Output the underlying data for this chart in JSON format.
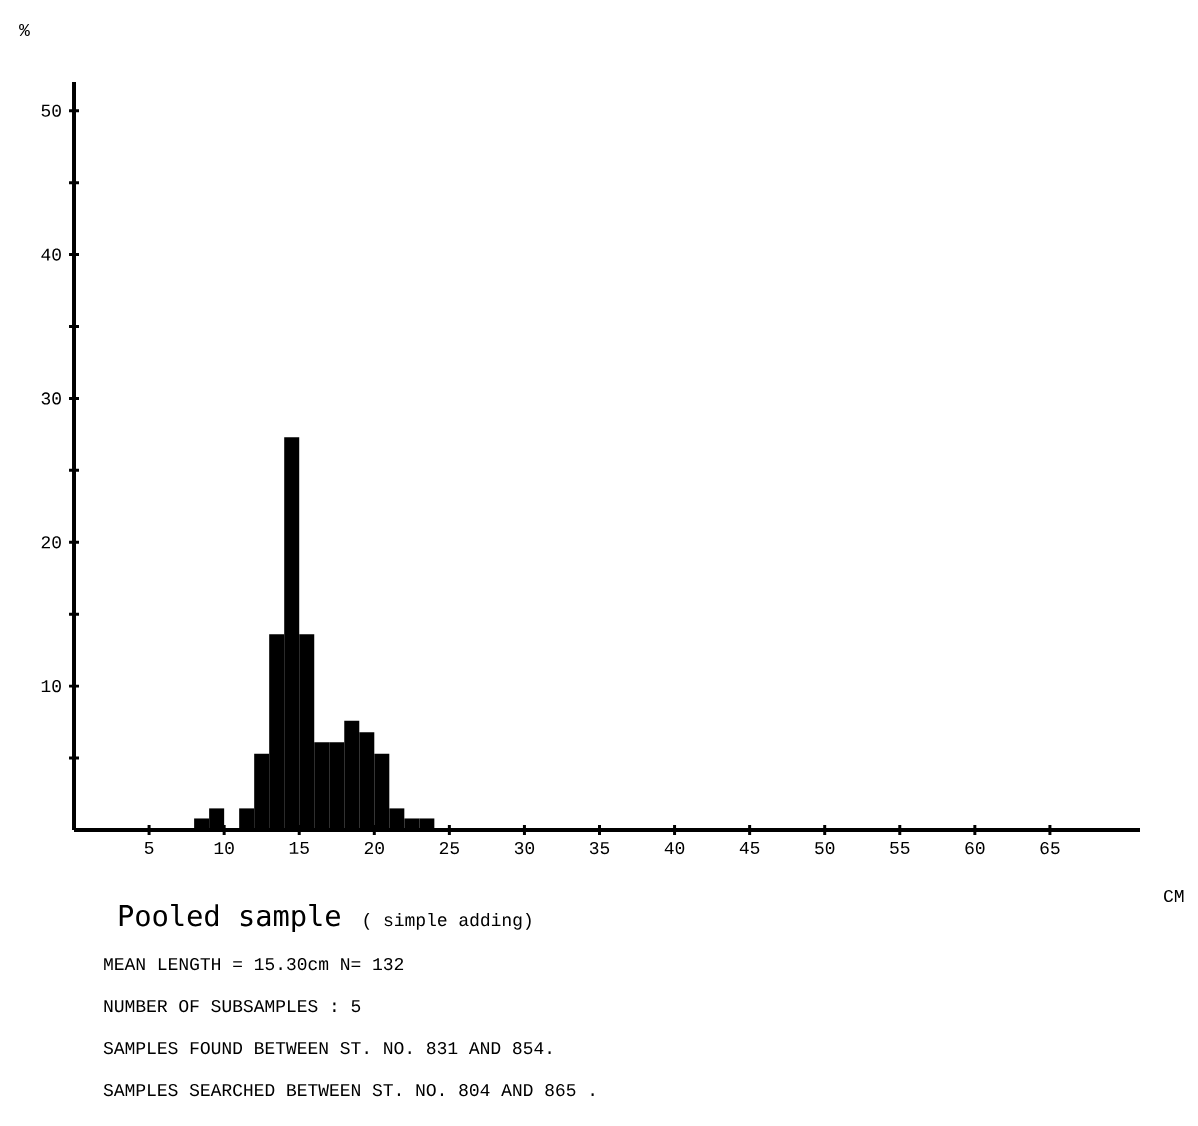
{
  "chart_data": {
    "type": "histogram",
    "title": "Pooled sample",
    "subtitle": "( simple adding)",
    "xlabel": "CM",
    "ylabel": "%",
    "bins": [
      8,
      9,
      10,
      11,
      12,
      13,
      14,
      15,
      16,
      17,
      18,
      19,
      20,
      21,
      22,
      23,
      24
    ],
    "values": [
      0.8,
      1.5,
      0,
      1.5,
      5.3,
      13.6,
      27.3,
      13.6,
      6.1,
      6.1,
      7.6,
      6.8,
      5.3,
      1.5,
      0.8,
      0.8
    ],
    "color": "#000000",
    "xlim": [
      0,
      71
    ],
    "ylim": [
      0,
      52
    ],
    "xticks": [
      5,
      10,
      15,
      20,
      25,
      30,
      35,
      40,
      45,
      50,
      55,
      60,
      65
    ],
    "yticks": [
      {
        "value": 5,
        "label": null
      },
      10,
      {
        "value": 15,
        "label": null
      },
      20,
      {
        "value": 25,
        "label": null
      },
      30,
      {
        "value": 35,
        "label": null
      },
      40,
      {
        "value": 45,
        "label": null
      },
      50
    ],
    "grid": false,
    "annotations": [
      "MEAN LENGTH = 15.30cm  N=  132",
      "NUMBER OF SUBSAMPLES :  5",
      "SAMPLES FOUND BETWEEN ST. NO. 831 AND  854.",
      "SAMPLES SEARCHED BETWEEN ST. NO. 804 AND  865 ."
    ]
  }
}
